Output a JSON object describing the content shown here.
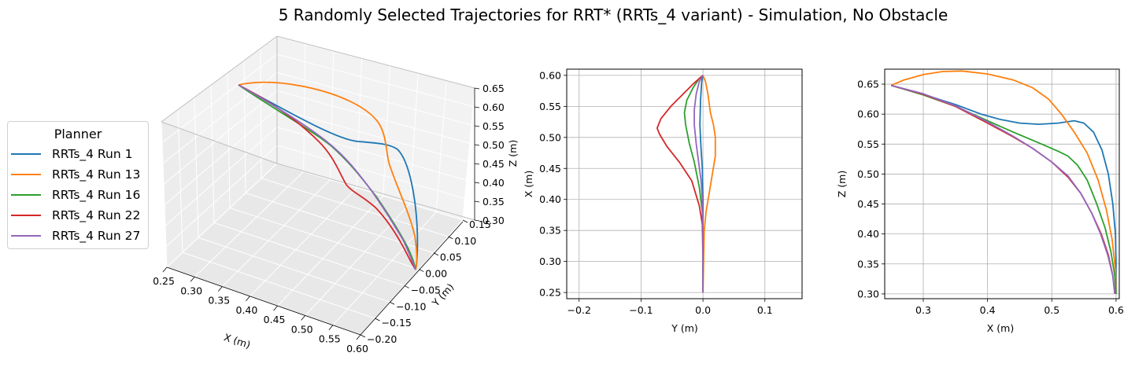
{
  "suptitle": "5 Randomly Selected Trajectories for RRT* (RRTs_4 variant) - Simulation, No Obstacle",
  "legend": {
    "title": "Planner",
    "items": [
      {
        "label": "RRTs_4 Run 1",
        "color": "#1f77b4"
      },
      {
        "label": "RRTs_4 Run 13",
        "color": "#ff7f0e"
      },
      {
        "label": "RRTs_4 Run 16",
        "color": "#2ca02c"
      },
      {
        "label": "RRTs_4 Run 22",
        "color": "#d62728"
      },
      {
        "label": "RRTs_4 Run 27",
        "color": "#9467bd"
      }
    ]
  },
  "chart_data": [
    {
      "type": "line",
      "subtype": "3d-trajectory",
      "xlabel": "X (m)",
      "ylabel": "Y (m)",
      "zlabel": "Z (m)",
      "xlim": [
        0.25,
        0.6
      ],
      "ylim": [
        -0.2,
        0.15
      ],
      "zlim": [
        0.3,
        0.65
      ],
      "xticks": [
        "0.25",
        "0.30",
        "0.35",
        "0.40",
        "0.45",
        "0.50",
        "0.55",
        "0.60"
      ],
      "yticks": [
        "−0.20",
        "−0.15",
        "−0.10",
        "−0.05",
        "0.00",
        "0.05",
        "0.10",
        "0.15"
      ],
      "zticks": [
        "0.30",
        "0.35",
        "0.40",
        "0.45",
        "0.50",
        "0.55",
        "0.60",
        "0.65"
      ],
      "grid": true
    },
    {
      "type": "line",
      "subtype": "top-view",
      "xlabel": "Y (m)",
      "ylabel": "X (m)",
      "xlim": [
        -0.22,
        0.16
      ],
      "ylim": [
        0.24,
        0.61
      ],
      "xticks": [
        -0.2,
        -0.1,
        0.0,
        0.1
      ],
      "xtick_labels": [
        "−0.2",
        "−0.1",
        "0.0",
        "0.1"
      ],
      "yticks": [
        0.25,
        0.3,
        0.35,
        0.4,
        0.45,
        0.5,
        0.55,
        0.6
      ],
      "ytick_labels": [
        "0.25",
        "0.30",
        "0.35",
        "0.40",
        "0.45",
        "0.50",
        "0.55",
        "0.60"
      ],
      "grid": true,
      "series": [
        {
          "color": "#1f77b4",
          "points": [
            [
              0.0,
              0.25
            ],
            [
              0.0,
              0.3
            ],
            [
              0.0,
              0.35
            ],
            [
              0.0,
              0.4
            ],
            [
              -0.001,
              0.45
            ],
            [
              -0.003,
              0.48
            ],
            [
              -0.005,
              0.52
            ],
            [
              -0.004,
              0.56
            ],
            [
              -0.002,
              0.59
            ],
            [
              0.0,
              0.6
            ]
          ]
        },
        {
          "color": "#ff7f0e",
          "points": [
            [
              0.0,
              0.25
            ],
            [
              0.001,
              0.3
            ],
            [
              0.002,
              0.35
            ],
            [
              0.005,
              0.38
            ],
            [
              0.01,
              0.41
            ],
            [
              0.015,
              0.44
            ],
            [
              0.02,
              0.47
            ],
            [
              0.02,
              0.5
            ],
            [
              0.017,
              0.52
            ],
            [
              0.012,
              0.54
            ],
            [
              0.008,
              0.57
            ],
            [
              0.004,
              0.59
            ],
            [
              0.0,
              0.6
            ]
          ]
        },
        {
          "color": "#2ca02c",
          "points": [
            [
              0.0,
              0.25
            ],
            [
              0.0,
              0.3
            ],
            [
              0.0,
              0.35
            ],
            [
              -0.001,
              0.38
            ],
            [
              -0.006,
              0.42
            ],
            [
              -0.014,
              0.46
            ],
            [
              -0.022,
              0.49
            ],
            [
              -0.028,
              0.52
            ],
            [
              -0.03,
              0.54
            ],
            [
              -0.026,
              0.56
            ],
            [
              -0.016,
              0.58
            ],
            [
              -0.006,
              0.595
            ],
            [
              0.0,
              0.6
            ]
          ]
        },
        {
          "color": "#d62728",
          "points": [
            [
              0.0,
              0.25
            ],
            [
              0.0,
              0.3
            ],
            [
              -0.001,
              0.36
            ],
            [
              -0.006,
              0.39
            ],
            [
              -0.018,
              0.43
            ],
            [
              -0.038,
              0.46
            ],
            [
              -0.058,
              0.485
            ],
            [
              -0.07,
              0.505
            ],
            [
              -0.074,
              0.515
            ],
            [
              -0.068,
              0.53
            ],
            [
              -0.052,
              0.55
            ],
            [
              -0.032,
              0.57
            ],
            [
              -0.014,
              0.588
            ],
            [
              0.0,
              0.6
            ]
          ]
        },
        {
          "color": "#9467bd",
          "points": [
            [
              0.0,
              0.25
            ],
            [
              0.0,
              0.3
            ],
            [
              0.0,
              0.35
            ],
            [
              -0.001,
              0.4
            ],
            [
              -0.003,
              0.43
            ],
            [
              -0.007,
              0.46
            ],
            [
              -0.011,
              0.49
            ],
            [
              -0.014,
              0.52
            ],
            [
              -0.014,
              0.545
            ],
            [
              -0.011,
              0.57
            ],
            [
              -0.006,
              0.59
            ],
            [
              0.0,
              0.6
            ]
          ]
        }
      ]
    },
    {
      "type": "line",
      "subtype": "side-view",
      "xlabel": "X (m)",
      "ylabel": "Z (m)",
      "xlim": [
        0.24,
        0.605
      ],
      "ylim": [
        0.292,
        0.675
      ],
      "xticks": [
        0.3,
        0.4,
        0.5,
        0.6
      ],
      "xtick_labels": [
        "0.3",
        "0.4",
        "0.5",
        "0.6"
      ],
      "yticks": [
        0.3,
        0.35,
        0.4,
        0.45,
        0.5,
        0.55,
        0.6,
        0.65
      ],
      "ytick_labels": [
        "0.30",
        "0.35",
        "0.40",
        "0.45",
        "0.50",
        "0.55",
        "0.60",
        "0.65"
      ],
      "grid": true,
      "series": [
        {
          "color": "#1f77b4",
          "points": [
            [
              0.25,
              0.648
            ],
            [
              0.3,
              0.633
            ],
            [
              0.35,
              0.616
            ],
            [
              0.39,
              0.6
            ],
            [
              0.42,
              0.591
            ],
            [
              0.45,
              0.585
            ],
            [
              0.48,
              0.583
            ],
            [
              0.51,
              0.585
            ],
            [
              0.535,
              0.589
            ],
            [
              0.55,
              0.585
            ],
            [
              0.565,
              0.57
            ],
            [
              0.578,
              0.54
            ],
            [
              0.588,
              0.5
            ],
            [
              0.595,
              0.45
            ],
            [
              0.599,
              0.4
            ],
            [
              0.6,
              0.35
            ],
            [
              0.6,
              0.3
            ]
          ]
        },
        {
          "color": "#ff7f0e",
          "points": [
            [
              0.25,
              0.648
            ],
            [
              0.27,
              0.657
            ],
            [
              0.3,
              0.666
            ],
            [
              0.33,
              0.671
            ],
            [
              0.36,
              0.672
            ],
            [
              0.4,
              0.667
            ],
            [
              0.44,
              0.657
            ],
            [
              0.47,
              0.644
            ],
            [
              0.495,
              0.625
            ],
            [
              0.515,
              0.6
            ],
            [
              0.535,
              0.57
            ],
            [
              0.555,
              0.535
            ],
            [
              0.572,
              0.49
            ],
            [
              0.585,
              0.44
            ],
            [
              0.594,
              0.39
            ],
            [
              0.599,
              0.34
            ],
            [
              0.6,
              0.3
            ]
          ]
        },
        {
          "color": "#2ca02c",
          "points": [
            [
              0.25,
              0.648
            ],
            [
              0.3,
              0.632
            ],
            [
              0.35,
              0.613
            ],
            [
              0.4,
              0.589
            ],
            [
              0.44,
              0.57
            ],
            [
              0.48,
              0.552
            ],
            [
              0.51,
              0.538
            ],
            [
              0.525,
              0.53
            ],
            [
              0.54,
              0.515
            ],
            [
              0.555,
              0.49
            ],
            [
              0.57,
              0.45
            ],
            [
              0.583,
              0.41
            ],
            [
              0.592,
              0.37
            ],
            [
              0.598,
              0.33
            ],
            [
              0.6,
              0.3
            ]
          ]
        },
        {
          "color": "#d62728",
          "points": [
            [
              0.25,
              0.648
            ],
            [
              0.3,
              0.633
            ],
            [
              0.35,
              0.613
            ],
            [
              0.4,
              0.585
            ],
            [
              0.44,
              0.562
            ],
            [
              0.47,
              0.543
            ],
            [
              0.5,
              0.52
            ],
            [
              0.525,
              0.495
            ],
            [
              0.545,
              0.468
            ],
            [
              0.562,
              0.435
            ],
            [
              0.577,
              0.4
            ],
            [
              0.588,
              0.365
            ],
            [
              0.595,
              0.33
            ],
            [
              0.598,
              0.3
            ]
          ]
        },
        {
          "color": "#9467bd",
          "points": [
            [
              0.25,
              0.648
            ],
            [
              0.3,
              0.634
            ],
            [
              0.35,
              0.614
            ],
            [
              0.4,
              0.587
            ],
            [
              0.44,
              0.563
            ],
            [
              0.47,
              0.543
            ],
            [
              0.5,
              0.52
            ],
            [
              0.525,
              0.497
            ],
            [
              0.545,
              0.468
            ],
            [
              0.562,
              0.435
            ],
            [
              0.576,
              0.4
            ],
            [
              0.587,
              0.365
            ],
            [
              0.595,
              0.33
            ],
            [
              0.598,
              0.3
            ]
          ]
        }
      ]
    }
  ]
}
